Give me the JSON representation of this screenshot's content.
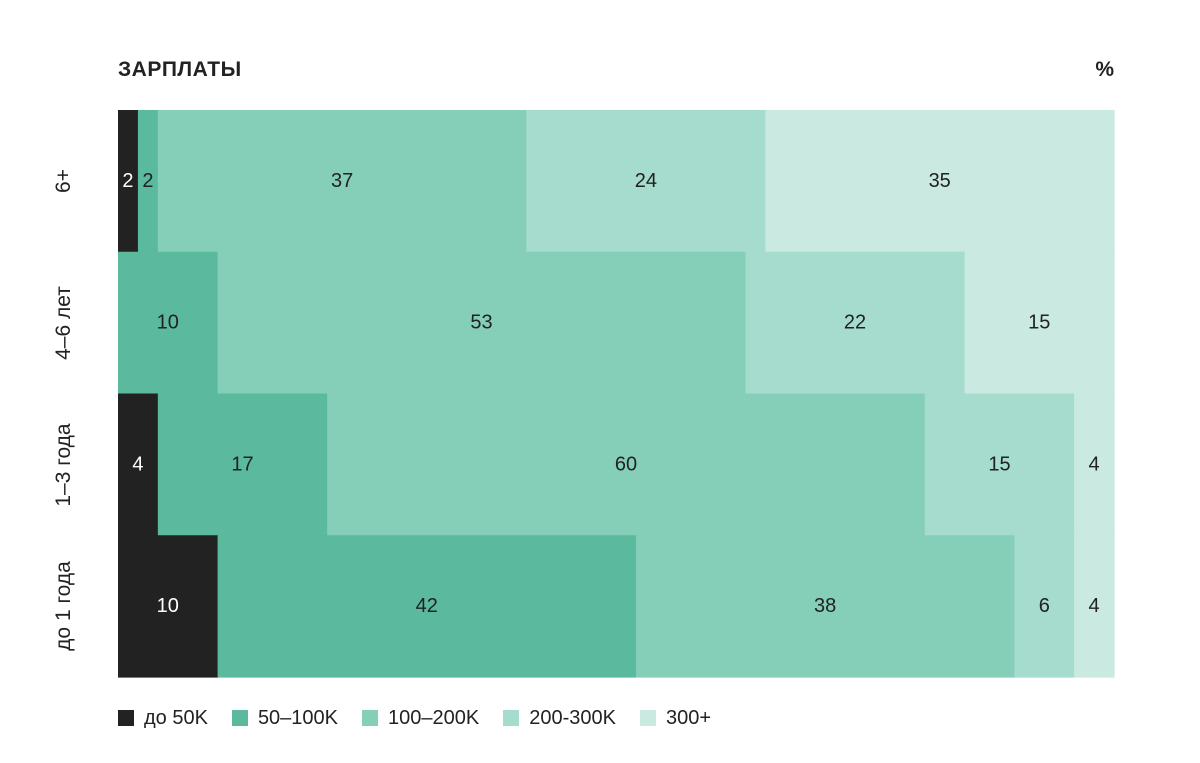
{
  "chart_data": {
    "type": "bar",
    "orientation": "horizontal",
    "stacked": true,
    "normalized": true,
    "title": "ЗАРПЛАТЫ",
    "unit": "%",
    "categories": [
      "6+",
      "4–6 лет",
      "1–3 года",
      "до 1 года"
    ],
    "series": [
      {
        "name": "до 50K",
        "color": "#222222",
        "label_color": "#ffffff",
        "values": [
          2,
          0,
          4,
          10
        ]
      },
      {
        "name": "50–100K",
        "color": "#5bb99d",
        "label_color": "#222222",
        "values": [
          2,
          10,
          17,
          42
        ]
      },
      {
        "name": "100–200K",
        "color": "#85ceb8",
        "label_color": "#222222",
        "values": [
          37,
          53,
          60,
          38
        ]
      },
      {
        "name": "200-300K",
        "color": "#a6dccd",
        "label_color": "#222222",
        "values": [
          24,
          22,
          15,
          6
        ]
      },
      {
        "name": "300+",
        "color": "#c9e9e1",
        "label_color": "#222222",
        "values": [
          35,
          15,
          4,
          4
        ]
      }
    ],
    "xlim": [
      0,
      100
    ],
    "grid": false,
    "legend_position": "bottom-left"
  }
}
